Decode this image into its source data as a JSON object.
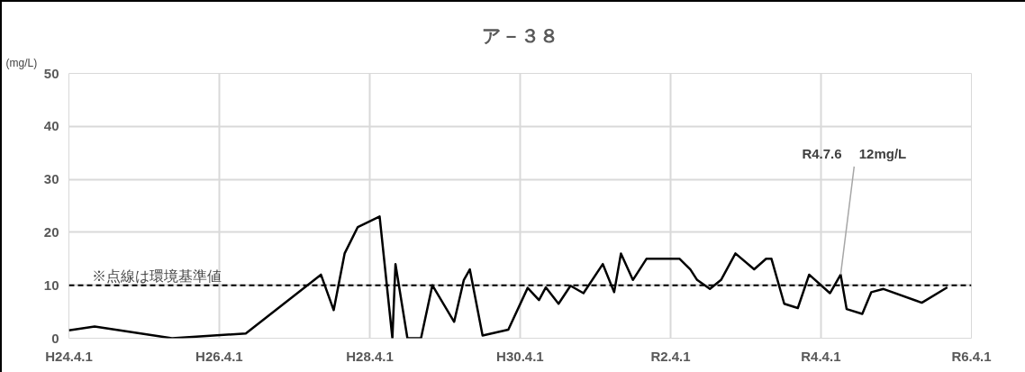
{
  "chart_data": {
    "type": "line",
    "title": "ア－３８",
    "ylabel": "(mg/L)",
    "x": [
      "2012-04-01",
      "2012-08-04",
      "2013-08-15",
      "2014-08-08",
      "2015-08-08",
      "2015-10-09",
      "2015-12-01",
      "2016-02-03",
      "2016-05-19",
      "2016-07-20",
      "2016-08-04",
      "2016-10-01",
      "2016-12-06",
      "2017-01-30",
      "2017-05-16",
      "2017-07-02",
      "2017-07-31",
      "2017-10-01",
      "2018-02-03",
      "2018-05-08",
      "2018-07-02",
      "2018-08-04",
      "2018-10-05",
      "2018-12-02",
      "2019-02-03",
      "2019-05-08",
      "2019-07-02",
      "2019-08-04",
      "2019-10-01",
      "2019-12-06",
      "2020-05-15",
      "2020-07-06",
      "2020-08-08",
      "2020-10-09",
      "2020-12-02",
      "2021-02-10",
      "2021-05-12",
      "2021-07-09",
      "2021-08-04",
      "2021-10-05",
      "2021-12-10",
      "2022-02-03",
      "2022-05-15",
      "2022-07-06",
      "2022-08-04",
      "2022-10-19",
      "2022-12-02",
      "2023-01-30",
      "2023-08-04",
      "2023-12-06"
    ],
    "series": [
      {
        "color": "#000000",
        "values": [
          1.5,
          2.2,
          0,
          0.9,
          12,
          5.3,
          16,
          21,
          23,
          0,
          14,
          0,
          0,
          10,
          3.1,
          11,
          13,
          0.5,
          1.6,
          9.5,
          7.2,
          9.6,
          6.5,
          9.9,
          8.5,
          14,
          8.7,
          16,
          11,
          15,
          15,
          13,
          11,
          9.3,
          11,
          16,
          13,
          15,
          15,
          6.5,
          5.7,
          12,
          8.5,
          12,
          5.5,
          4.6,
          8.7,
          9.3,
          6.7,
          9.6
        ]
      }
    ],
    "xlim": [
      "2012-04-01",
      "2024-04-01"
    ],
    "xticks": [
      {
        "value": "2012-04-01",
        "label": "H24.4.1"
      },
      {
        "value": "2014-04-01",
        "label": "H26.4.1"
      },
      {
        "value": "2016-04-01",
        "label": "H28.4.1"
      },
      {
        "value": "2018-04-01",
        "label": "H30.4.1"
      },
      {
        "value": "2020-04-01",
        "label": "R2.4.1"
      },
      {
        "value": "2022-04-01",
        "label": "R4.4.1"
      },
      {
        "value": "2024-04-01",
        "label": "R6.4.1"
      }
    ],
    "ylim": [
      0,
      50
    ],
    "yticks": [
      0,
      10,
      20,
      30,
      40,
      50
    ],
    "grid": true,
    "marker": "none",
    "line_style": "solid",
    "ref_lines": [
      {
        "axis": "y",
        "value": 10,
        "label": "※点線は環境基準値",
        "color": "#000000",
        "line_style": "dashed"
      }
    ],
    "annotations": [
      {
        "text": "R4.7.6　 12mg/L",
        "x": "2022-07-06",
        "y": 12
      }
    ]
  }
}
